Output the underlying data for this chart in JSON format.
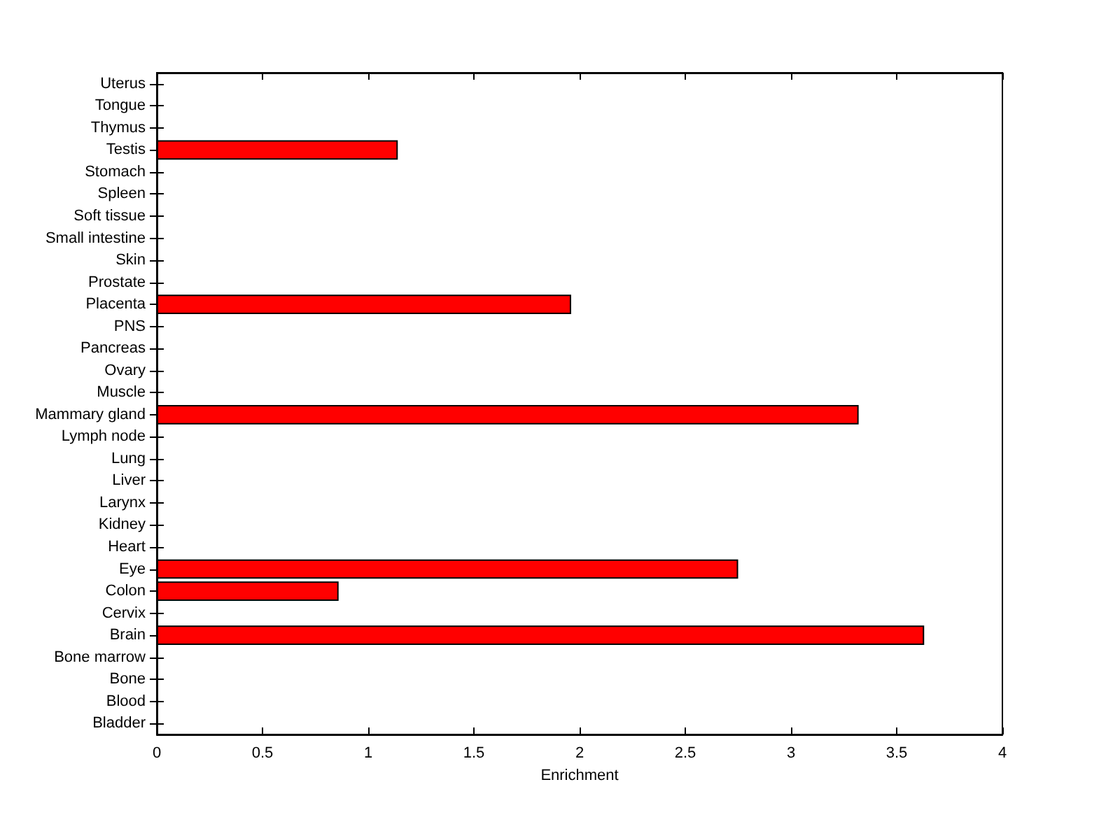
{
  "chart_data": {
    "type": "bar",
    "orientation": "horizontal",
    "xlabel": "Enrichment",
    "categories": [
      "Uterus",
      "Tongue",
      "Thymus",
      "Testis",
      "Stomach",
      "Spleen",
      "Soft tissue",
      "Small intestine",
      "Skin",
      "Prostate",
      "Placenta",
      "PNS",
      "Pancreas",
      "Ovary",
      "Muscle",
      "Mammary gland",
      "Lymph node",
      "Lung",
      "Liver",
      "Larynx",
      "Kidney",
      "Heart",
      "Eye",
      "Colon",
      "Cervix",
      "Brain",
      "Bone marrow",
      "Bone",
      "Blood",
      "Bladder"
    ],
    "values": [
      0,
      0,
      0,
      1.14,
      0,
      0,
      0,
      0,
      0,
      0,
      1.96,
      0,
      0,
      0,
      0,
      3.32,
      0,
      0,
      0,
      0,
      0,
      0,
      2.75,
      0.86,
      0,
      3.63,
      0,
      0,
      0,
      0
    ],
    "color": "#ff0000",
    "xlim": [
      0,
      4
    ],
    "xticks": [
      0,
      0.5,
      1,
      1.5,
      2,
      2.5,
      3,
      3.5,
      4
    ]
  }
}
